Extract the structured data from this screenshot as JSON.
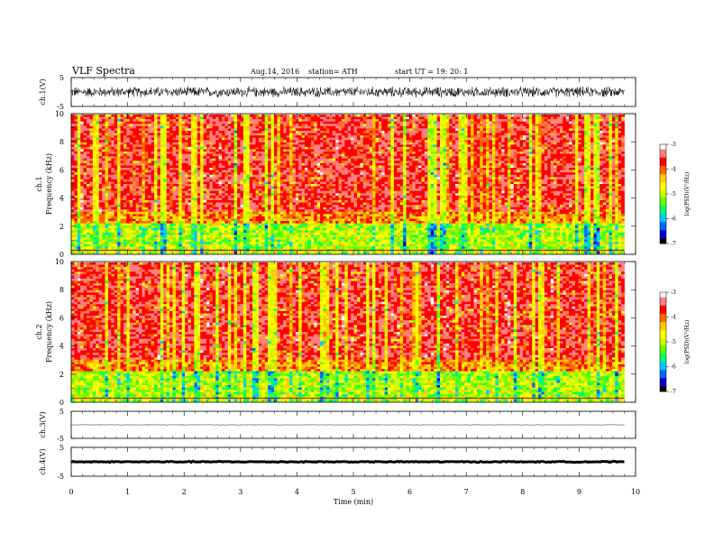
{
  "header": {
    "title": "VLF Spectra",
    "date": "Aug.14, 2016",
    "station": "station= ATH",
    "start_ut": "start  UT =   19: 20: 1"
  },
  "chart_data": [
    {
      "type": "line",
      "panel": "ch1-waveform",
      "ylabel": "ch.1(V)",
      "yticks": [
        "5",
        "-5"
      ],
      "ylim": [
        -5,
        5
      ],
      "xlim": [
        0,
        10
      ],
      "description_values": {
        "amplitude_range": [
          -1.5,
          1.5
        ],
        "mean": 0
      }
    },
    {
      "type": "heatmap",
      "panel": "ch1-spectrogram",
      "ylabel": "ch.1\nFrequency (kHz)",
      "yticks": [
        "0",
        "2",
        "4",
        "6",
        "8",
        "10"
      ],
      "ylim": [
        0,
        10
      ],
      "xlim": [
        0,
        10
      ],
      "colorbar": {
        "label": "log(PSD)(V²/Hz)",
        "ticks": [
          "-3",
          "-4",
          "-5",
          "-6",
          "-7"
        ],
        "range": [
          -7,
          -3
        ]
      }
    },
    {
      "type": "heatmap",
      "panel": "ch2-spectrogram",
      "ylabel": "ch.2\nFrequency (kHz)",
      "yticks": [
        "0",
        "2",
        "4",
        "6",
        "8",
        "10"
      ],
      "ylim": [
        0,
        10
      ],
      "xlim": [
        0,
        10
      ],
      "colorbar": {
        "label": "log(PSD)(V²/Hz)",
        "ticks": [
          "-3",
          "-4",
          "-5",
          "-6",
          "-7"
        ],
        "range": [
          -7,
          -3
        ]
      }
    },
    {
      "type": "line",
      "panel": "ch3-waveform",
      "ylabel": "ch.3(V)",
      "yticks": [
        "5",
        "-5"
      ],
      "ylim": [
        -5,
        5
      ],
      "xlim": [
        0,
        10
      ],
      "description_values": {
        "level": 0
      }
    },
    {
      "type": "line",
      "panel": "ch4-waveform",
      "ylabel": "ch.4(V)",
      "yticks": [
        "5",
        "-5"
      ],
      "ylim": [
        -5,
        5
      ],
      "xlim": [
        0,
        10
      ],
      "description_values": {
        "level": 0
      }
    }
  ],
  "xaxis": {
    "label": "Time (min)",
    "ticks": [
      "0",
      "1",
      "2",
      "3",
      "4",
      "5",
      "6",
      "7",
      "8",
      "9",
      "10"
    ],
    "data_end": 9.8
  },
  "colors": {
    "palette": [
      "#000000",
      "#0000cc",
      "#0066ff",
      "#00ccff",
      "#00ff66",
      "#66ff00",
      "#ccff00",
      "#ffff00",
      "#ffcc00",
      "#ff6600",
      "#ff0000",
      "#ff8080",
      "#ffffff"
    ]
  }
}
